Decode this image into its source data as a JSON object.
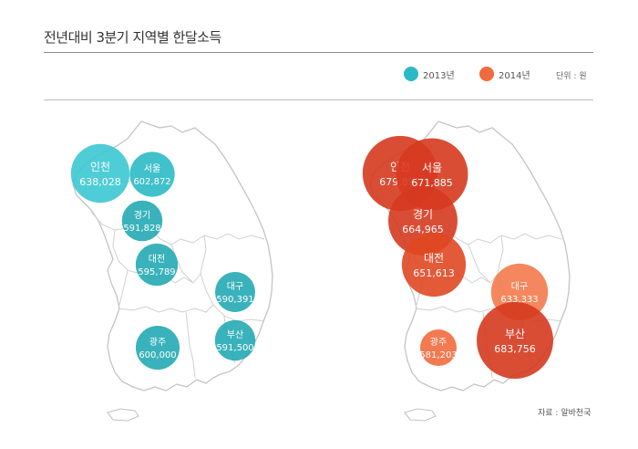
{
  "title": "전년대비 3분기 지역별 한달소득",
  "unit": "단위 : 원",
  "source": "자료 : 알바천국",
  "colors": {
    "series2013": "#2bbac5",
    "series2014": "#f26a3d"
  },
  "chart_data": [
    {
      "type": "bubble-map",
      "series": "2013년",
      "points": [
        {
          "region": "인천",
          "value": 638028,
          "label": "638,028"
        },
        {
          "region": "서울",
          "value": 602872,
          "label": "602,872"
        },
        {
          "region": "경기",
          "value": 591828,
          "label": "591,828"
        },
        {
          "region": "대전",
          "value": 595789,
          "label": "595,789"
        },
        {
          "region": "대구",
          "value": 590391,
          "label": "590,391"
        },
        {
          "region": "부산",
          "value": 591500,
          "label": "591,500"
        },
        {
          "region": "광주",
          "value": 600000,
          "label": "600,000"
        }
      ]
    },
    {
      "type": "bubble-map",
      "series": "2014년",
      "points": [
        {
          "region": "인천",
          "value": 679891,
          "label": "679,891"
        },
        {
          "region": "서울",
          "value": 671885,
          "label": "671,885"
        },
        {
          "region": "경기",
          "value": 664965,
          "label": "664,965"
        },
        {
          "region": "대전",
          "value": 651613,
          "label": "651,613"
        },
        {
          "region": "대구",
          "value": 633333,
          "label": "633,333"
        },
        {
          "region": "부산",
          "value": 683756,
          "label": "683,756"
        },
        {
          "region": "광주",
          "value": 581203,
          "label": "581,203"
        }
      ]
    }
  ],
  "legend": [
    "2013년",
    "2014년"
  ]
}
